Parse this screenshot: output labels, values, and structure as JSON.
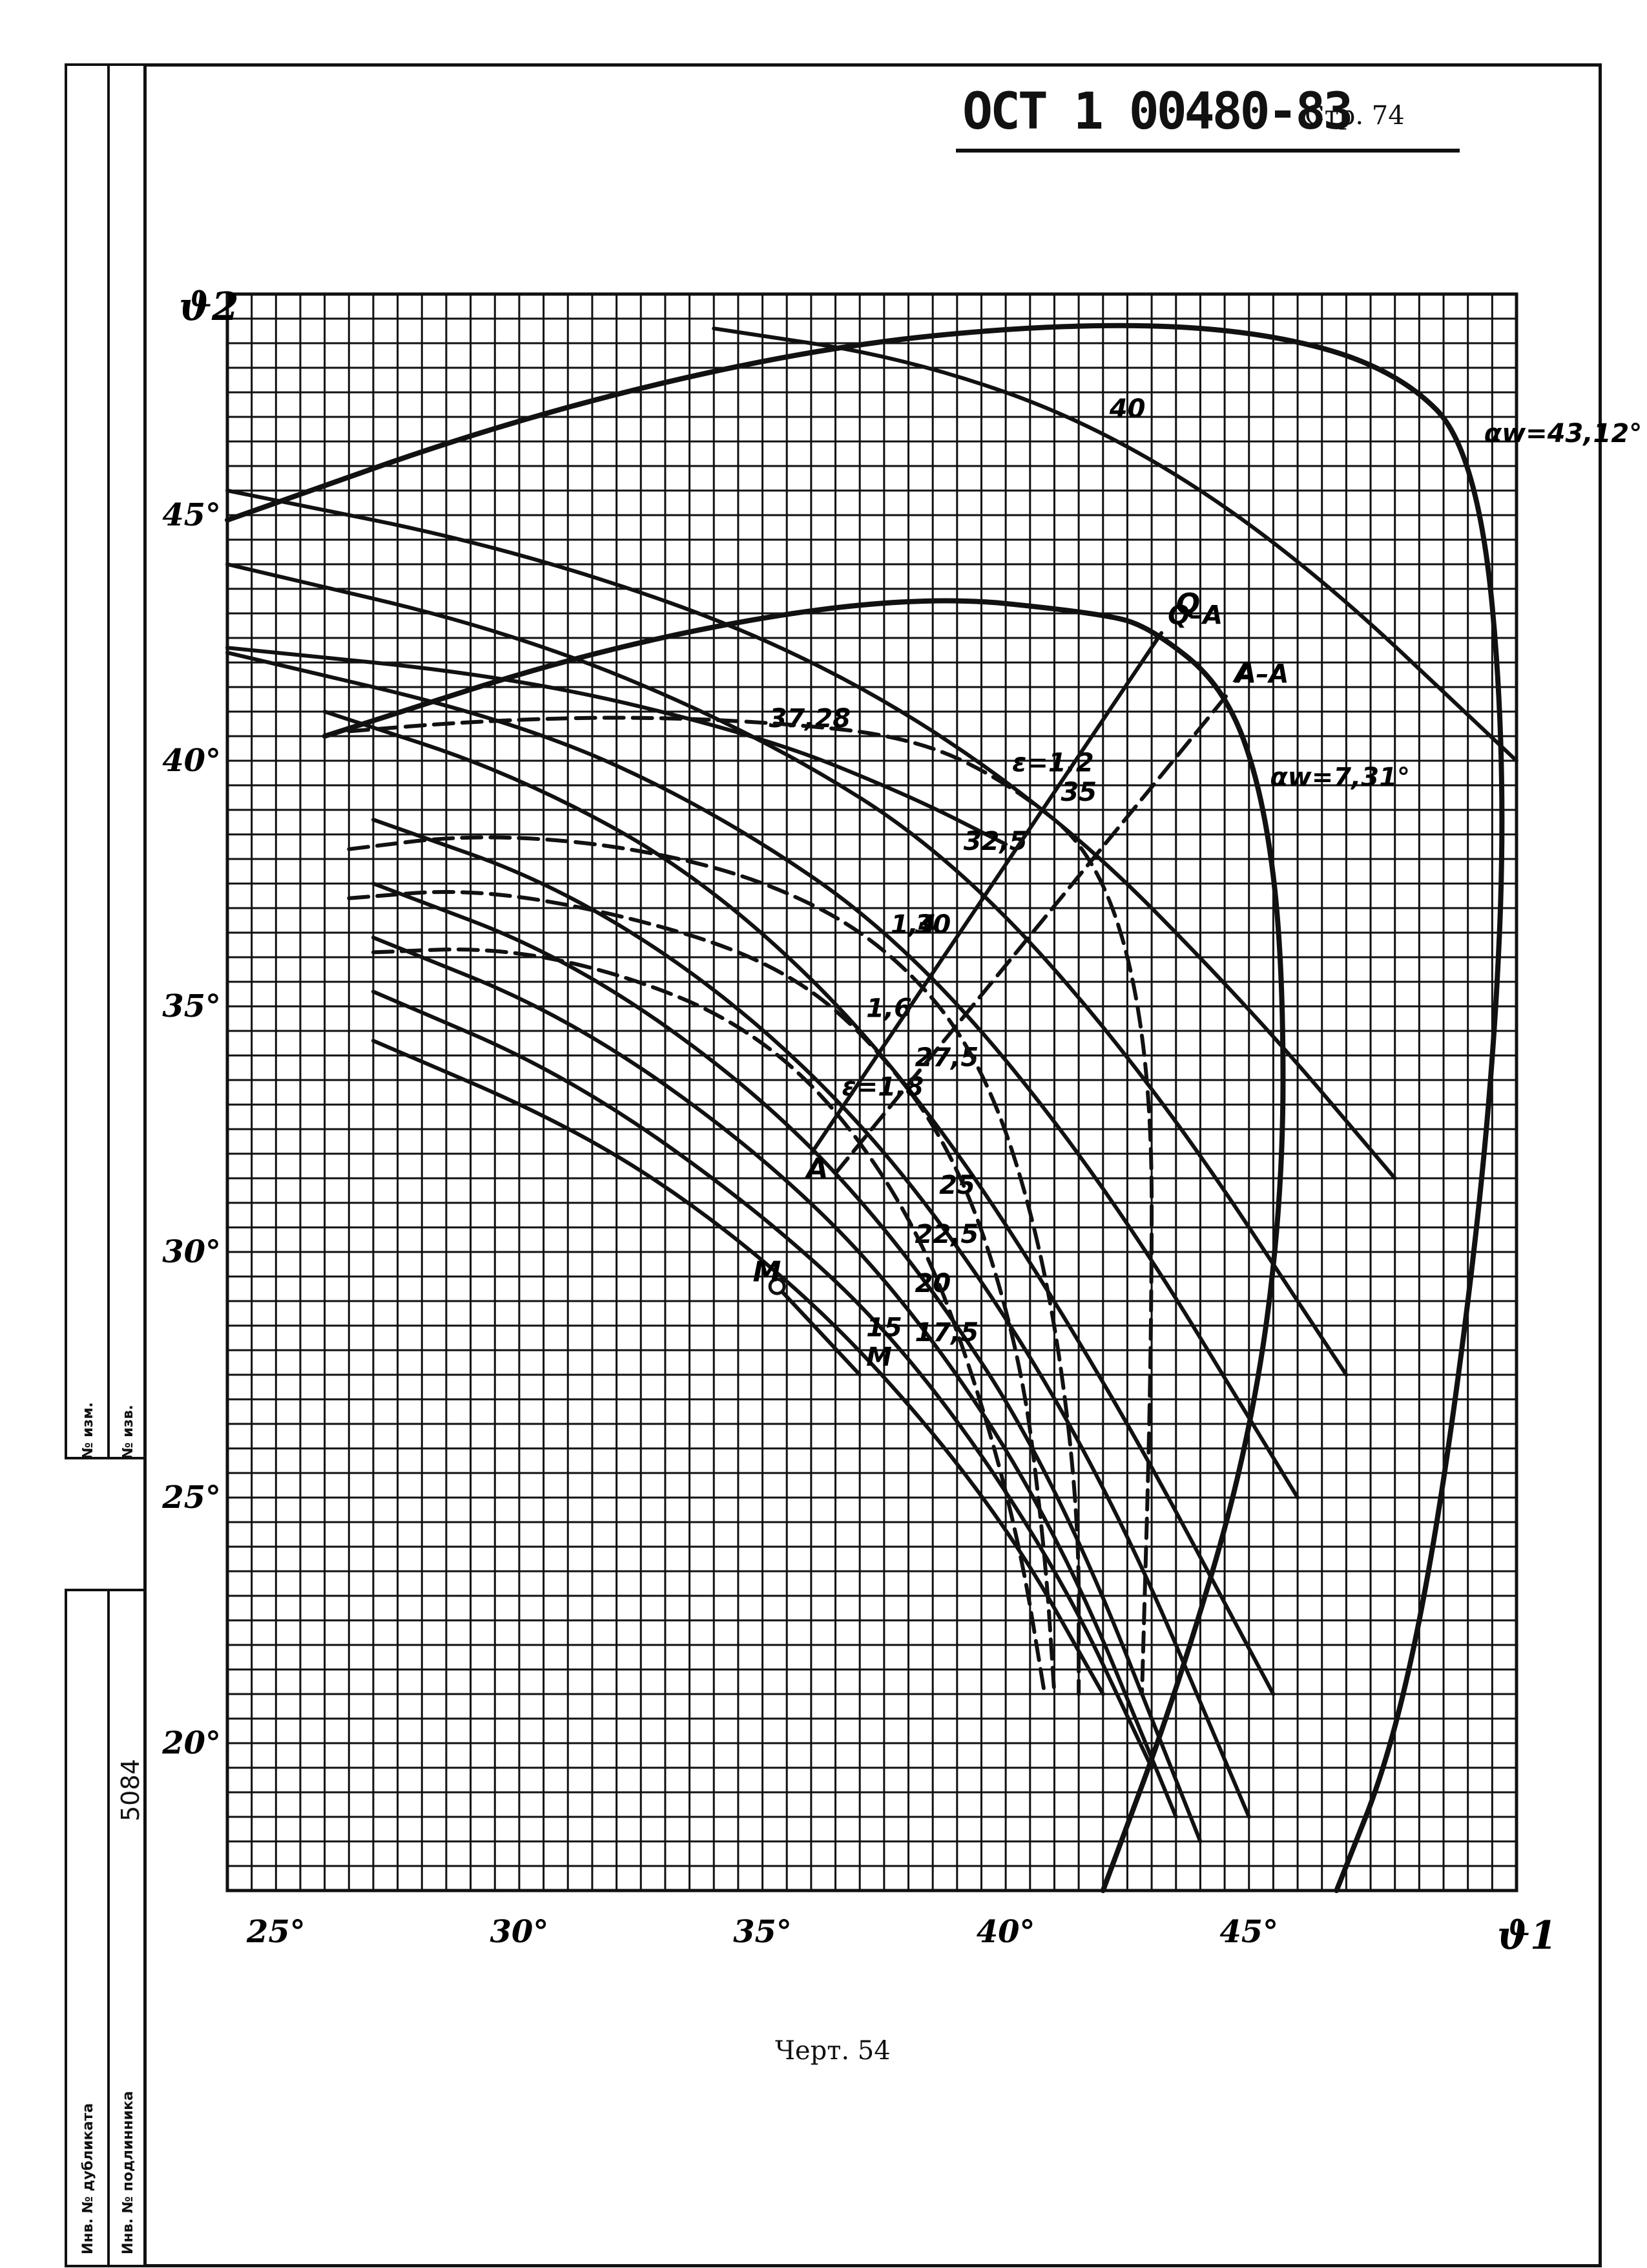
{
  "header": {
    "doc_code": "ОСТ 1 00480-83",
    "page_label": "Стр. 74"
  },
  "caption": "Черт. 54",
  "side_stamp": {
    "izm_1": "№ изм.",
    "izm_2": "№ изв.",
    "number": "5084",
    "dubl": "Инв. № дубликата",
    "podl": "Инв. № подлинника"
  },
  "chart_data": {
    "type": "line",
    "xlabel": "ϑ1",
    "ylabel": "ϑ2",
    "xlim": [
      24,
      50.5
    ],
    "ylim": [
      17,
      49.5
    ],
    "grid": true,
    "x_ticks": [
      25,
      30,
      35,
      40,
      45
    ],
    "x_tick_labels": [
      "25°",
      "30°",
      "35°",
      "40°",
      "45°"
    ],
    "y_ticks": [
      20,
      25,
      30,
      35,
      40,
      45
    ],
    "y_tick_labels": [
      "20°",
      "25°",
      "30°",
      "35°",
      "40°",
      "45°"
    ],
    "series": [
      {
        "name": "40",
        "points": [
          [
            34,
            48.8
          ],
          [
            38,
            48.2
          ],
          [
            42,
            46.8
          ],
          [
            46,
            44.2
          ],
          [
            50.5,
            40
          ]
        ]
      },
      {
        "name": "37,28",
        "points": [
          [
            24,
            42.3
          ],
          [
            30,
            41.7
          ],
          [
            35,
            40.5
          ],
          [
            38,
            39.3
          ],
          [
            40,
            38.3
          ]
        ]
      },
      {
        "name": "35",
        "points": [
          [
            24,
            45.5
          ],
          [
            30,
            44.3
          ],
          [
            36,
            42.2
          ],
          [
            41,
            39
          ],
          [
            45,
            35
          ],
          [
            48,
            31.5
          ]
        ]
      },
      {
        "name": "32,5",
        "points": [
          [
            24,
            44
          ],
          [
            30,
            42.6
          ],
          [
            35,
            40.5
          ],
          [
            39,
            38
          ],
          [
            43,
            33.5
          ],
          [
            47,
            27.5
          ]
        ]
      },
      {
        "name": "30",
        "points": [
          [
            24,
            42.2
          ],
          [
            30,
            40.8
          ],
          [
            34,
            39
          ],
          [
            38,
            36.3
          ],
          [
            42,
            31.5
          ],
          [
            46,
            25
          ]
        ]
      },
      {
        "name": "27,5",
        "points": [
          [
            26,
            41
          ],
          [
            30,
            39.7
          ],
          [
            34,
            37.5
          ],
          [
            38,
            33.6
          ],
          [
            42,
            27.5
          ],
          [
            45.5,
            21
          ]
        ]
      },
      {
        "name": "25",
        "points": [
          [
            27,
            38.8
          ],
          [
            31,
            37.4
          ],
          [
            35,
            34.7
          ],
          [
            38.5,
            31
          ],
          [
            42,
            25.5
          ],
          [
            45,
            18.5
          ]
        ]
      },
      {
        "name": "22,5",
        "points": [
          [
            27,
            37.5
          ],
          [
            31,
            36
          ],
          [
            35,
            33.2
          ],
          [
            38,
            30
          ],
          [
            41,
            25.5
          ],
          [
            44,
            18
          ]
        ]
      },
      {
        "name": "20",
        "points": [
          [
            27,
            36.4
          ],
          [
            31,
            34.8
          ],
          [
            35,
            32
          ],
          [
            38,
            29
          ],
          [
            41,
            24.5
          ],
          [
            43.5,
            18.5
          ]
        ]
      },
      {
        "name": "17,5",
        "points": [
          [
            27,
            35.3
          ],
          [
            31,
            33.6
          ],
          [
            35,
            30.8
          ],
          [
            38,
            28
          ],
          [
            41,
            23.7
          ],
          [
            43,
            19.5
          ]
        ]
      },
      {
        "name": "15",
        "points": [
          [
            27,
            34.3
          ],
          [
            31,
            32.6
          ],
          [
            34,
            30.7
          ],
          [
            37,
            28.1
          ],
          [
            40,
            24.5
          ],
          [
            42,
            21
          ]
        ]
      },
      {
        "name": "αw=43,12°",
        "points": [
          [
            24,
            44.9
          ],
          [
            30,
            47
          ],
          [
            36,
            48.4
          ],
          [
            41,
            48.9
          ],
          [
            45,
            48.8
          ],
          [
            48,
            48
          ],
          [
            49.7,
            46.3
          ],
          [
            50.3,
            40
          ],
          [
            50,
            33
          ],
          [
            49,
            25
          ],
          [
            48,
            20
          ],
          [
            46.8,
            17
          ]
        ]
      },
      {
        "name": "αw=7,31°",
        "points": [
          [
            26,
            40.5
          ],
          [
            32,
            42.4
          ],
          [
            38,
            43.4
          ],
          [
            42,
            43
          ],
          [
            43,
            42.7
          ],
          [
            44.5,
            41.5
          ],
          [
            45.3,
            39.3
          ],
          [
            45.7,
            36
          ],
          [
            45.7,
            31
          ],
          [
            45,
            26
          ],
          [
            43.5,
            21
          ],
          [
            42,
            17
          ]
        ]
      },
      {
        "name": "ε=1,2",
        "points": [
          [
            26.5,
            40.6
          ],
          [
            29,
            40.8
          ],
          [
            32,
            40.9
          ],
          [
            35,
            40.8
          ],
          [
            38,
            40.5
          ],
          [
            40,
            39.6
          ],
          [
            42,
            38
          ],
          [
            43,
            34
          ],
          [
            43,
            28
          ],
          [
            42.8,
            21
          ]
        ]
      },
      {
        "name": "1,4",
        "points": [
          [
            26.5,
            38.2
          ],
          [
            29,
            38.5
          ],
          [
            32,
            38.3
          ],
          [
            35,
            37.6
          ],
          [
            37.5,
            36.3
          ],
          [
            39.5,
            34
          ],
          [
            40.8,
            30
          ],
          [
            41.5,
            25
          ],
          [
            41.5,
            21
          ]
        ]
      },
      {
        "name": "1,6",
        "points": [
          [
            26.5,
            37.2
          ],
          [
            29,
            37.4
          ],
          [
            32,
            36.9
          ],
          [
            35,
            36
          ],
          [
            37,
            34.6
          ],
          [
            39,
            32
          ],
          [
            40.3,
            28
          ],
          [
            40.8,
            24
          ],
          [
            41,
            21
          ]
        ]
      },
      {
        "name": "ε=1,8",
        "points": [
          [
            27,
            36.1
          ],
          [
            29.5,
            36.2
          ],
          [
            32,
            35.7
          ],
          [
            34.5,
            34.7
          ],
          [
            36.5,
            33
          ],
          [
            38.3,
            30.3
          ],
          [
            39.5,
            27
          ],
          [
            40.3,
            24
          ],
          [
            40.8,
            21
          ]
        ]
      },
      {
        "name": "Q–A",
        "points": [
          [
            36,
            32
          ],
          [
            43.2,
            42.6
          ]
        ]
      },
      {
        "name": "A–A",
        "points": [
          [
            36.5,
            31.6
          ],
          [
            44.6,
            41.4
          ]
        ]
      },
      {
        "name": "M",
        "points": [
          [
            35.3,
            29.3
          ],
          [
            37,
            27.5
          ]
        ]
      }
    ],
    "annotations": [
      {
        "text": "Q",
        "x": 43.5,
        "y": 43
      },
      {
        "text": "A",
        "x": 44.7,
        "y": 41.6
      },
      {
        "text": "A",
        "x": 35.9,
        "y": 31.5
      },
      {
        "text": "M",
        "x": 34.8,
        "y": 29.4
      }
    ]
  }
}
